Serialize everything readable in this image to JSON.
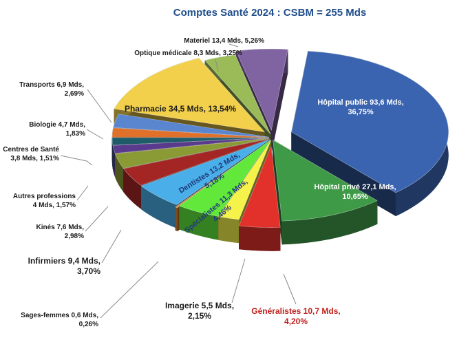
{
  "chart_data": {
    "type": "pie",
    "title": "Comptes Santé 2024 : CSBM = 255 Mds",
    "unit": "Mds",
    "total": 255,
    "slices": [
      {
        "name": "Hôpital public",
        "value": 93.6,
        "percent": 36.75,
        "value_label": "93,6 Mds,",
        "percent_label": "36,75%",
        "color": "#3a64b0"
      },
      {
        "name": "Hôpital privé",
        "value": 27.1,
        "percent": 10.65,
        "value_label": "27,1 Mds,",
        "percent_label": "10,65%",
        "color": "#3f9a48"
      },
      {
        "name": "Généralistes",
        "value": 10.7,
        "percent": 4.2,
        "value_label": "10,7 Mds,",
        "percent_label": "4,20%",
        "color": "#e2312a"
      },
      {
        "name": "Imagerie",
        "value": 5.5,
        "percent": 2.15,
        "value_label": "5,5 Mds,",
        "percent_label": "2,15%",
        "color": "#f5f24a"
      },
      {
        "name": "Spécialistes",
        "value": 11.3,
        "percent": 4.46,
        "value_label": "11,3 Mds,",
        "percent_label": "4,46%",
        "color": "#61e83a"
      },
      {
        "name": "Sages-femmes",
        "value": 0.6,
        "percent": 0.26,
        "value_label": "0,6 Mds,",
        "percent_label": "0,26%",
        "color": "#e08a3a"
      },
      {
        "name": "Dentistes",
        "value": 13.2,
        "percent": 5.18,
        "value_label": "13,2 Mds,",
        "percent_label": "5,18%",
        "color": "#4aaee8"
      },
      {
        "name": "Infirmiers",
        "value": 9.4,
        "percent": 3.7,
        "value_label": "9,4 Mds,",
        "percent_label": "3,70%",
        "color": "#a32624"
      },
      {
        "name": "Kinés",
        "value": 7.6,
        "percent": 2.98,
        "value_label": "7,6 Mds,",
        "percent_label": "2,98%",
        "color": "#8a9a34"
      },
      {
        "name": "Autres professions",
        "value": 4.0,
        "percent": 1.57,
        "value_label": "4 Mds,",
        "percent_label": "1,57%",
        "color": "#5a3a8c"
      },
      {
        "name": "Centres de Santé",
        "value": 3.8,
        "percent": 1.51,
        "value_label": "3,8 Mds,",
        "percent_label": "1,51%",
        "color": "#1e5c6a"
      },
      {
        "name": "Biologie",
        "value": 4.7,
        "percent": 1.83,
        "value_label": "4,7 Mds,",
        "percent_label": "1,83%",
        "color": "#e0702a"
      },
      {
        "name": "Transports",
        "value": 6.9,
        "percent": 2.69,
        "value_label": "6,9 Mds,",
        "percent_label": "2,69%",
        "color": "#5a86d0"
      },
      {
        "name": "Pharmacie",
        "value": 34.5,
        "percent": 13.54,
        "value_label": "34,5 Mds,",
        "percent_label": "13,54%",
        "color": "#f2d04c"
      },
      {
        "name": "Optique médicale",
        "value": 8.3,
        "percent": 3.25,
        "value_label": "8,3 Mds,",
        "percent_label": "3,25%",
        "color": "#9bbb59"
      },
      {
        "name": "Materiel",
        "value": 13.4,
        "percent": 5.26,
        "value_label": "13,4 Mds,",
        "percent_label": "5,26%",
        "color": "#8064a2"
      }
    ],
    "title_color": "#1f4e8c",
    "highlight_label_color": "#c0201c"
  }
}
